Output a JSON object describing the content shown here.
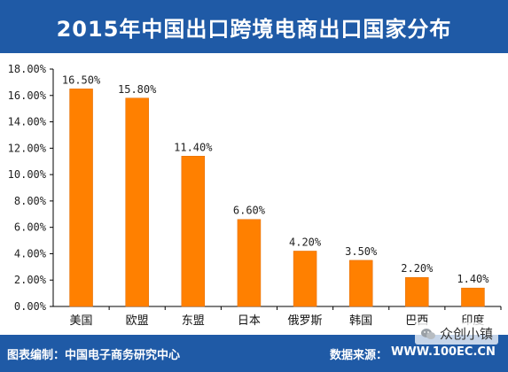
{
  "title": "2015年中国出口跨境电商出口国家分布",
  "footer": {
    "producer": "图表编制：中国电子商务研究中心",
    "source_label": "数据来源：",
    "source_value": "WWW.100EC.CN"
  },
  "watermark": {
    "text": "众创小镇",
    "icon": "wechat-icon"
  },
  "colors": {
    "header": "#1f5aa6",
    "bar": "#ff8000",
    "bar_edge": "#e06a00"
  },
  "chart_data": {
    "type": "bar",
    "title": "2015年中国出口跨境电商出口国家分布",
    "xlabel": "",
    "ylabel": "",
    "categories": [
      "美国",
      "欧盟",
      "东盟",
      "日本",
      "俄罗斯",
      "韩国",
      "巴西",
      "印度"
    ],
    "values": [
      16.5,
      15.8,
      11.4,
      6.6,
      4.2,
      3.5,
      2.2,
      1.4
    ],
    "value_labels": [
      "16.50%",
      "15.80%",
      "11.40%",
      "6.60%",
      "4.20%",
      "3.50%",
      "2.20%",
      "1.40%"
    ],
    "ylim": [
      0,
      18
    ],
    "yticks": [
      0,
      2,
      4,
      6,
      8,
      10,
      12,
      14,
      16,
      18
    ],
    "ytick_labels": [
      "0.00%",
      "2.00%",
      "4.00%",
      "6.00%",
      "8.00%",
      "10.00%",
      "12.00%",
      "14.00%",
      "16.00%",
      "18.00%"
    ],
    "grid": false,
    "legend": "none"
  }
}
